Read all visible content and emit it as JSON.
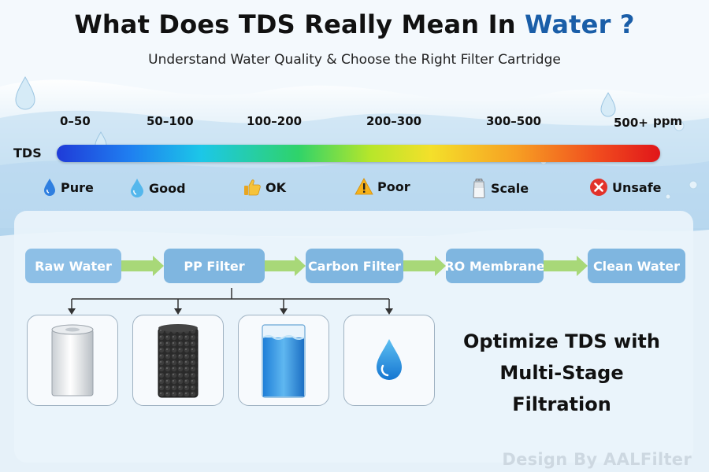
{
  "header": {
    "title_main": "What Does TDS Really Mean In",
    "title_accent": "Water ?",
    "subtitle": "Understand Water Quality & Choose the Right Filter Cartridge"
  },
  "tds_scale": {
    "label": "TDS",
    "unit": "ppm",
    "ranges": [
      "0–50",
      "50–100",
      "100–200",
      "200–300",
      "300–500",
      "500+"
    ],
    "levels": [
      {
        "label": "Pure",
        "icon": "water-drop-icon"
      },
      {
        "label": "Good",
        "icon": "water-drop-icon"
      },
      {
        "label": "OK",
        "icon": "thumbs-up-icon"
      },
      {
        "label": "Poor",
        "icon": "warning-icon"
      },
      {
        "label": "Scale",
        "icon": "salt-shaker-icon"
      },
      {
        "label": "Unsafe",
        "icon": "x-circle-icon"
      }
    ],
    "colors": [
      "#1f3bd8",
      "#1cc7e8",
      "#2fd36a",
      "#f4e02a",
      "#f7a023",
      "#e0161a"
    ]
  },
  "process": {
    "stages": [
      "Raw Water",
      "PP Filter",
      "Carbon Filter",
      "RO Membrane",
      "Clean Water"
    ],
    "cartridges": [
      "sediment-cartridge-icon",
      "carbon-cartridge-icon",
      "ro-membrane-cartridge-icon",
      "clean-water-drop-icon"
    ],
    "stage_color": "#7fb6e0",
    "arrow_color": "#a8d878"
  },
  "tagline": {
    "line1": "Optimize TDS with",
    "line2": "Multi-Stage Filtration"
  },
  "watermark": "Design By AALFilter"
}
